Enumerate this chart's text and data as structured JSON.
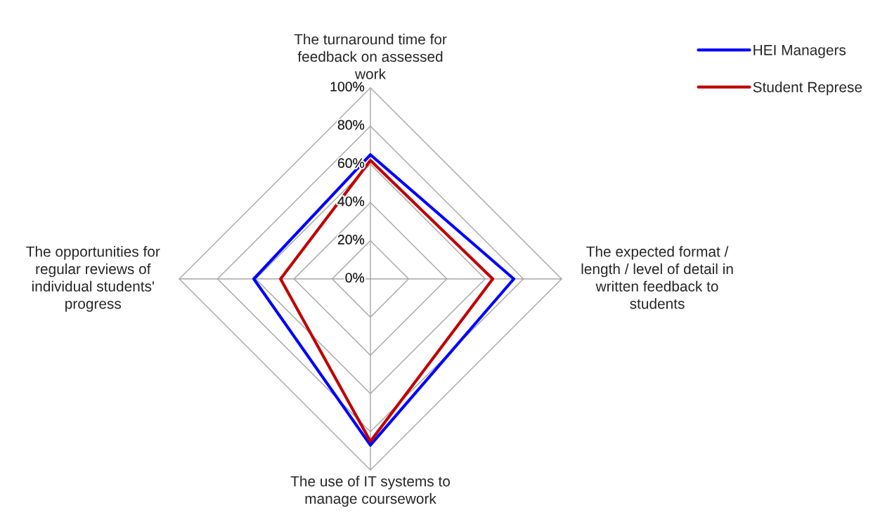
{
  "chart_data": {
    "type": "radar",
    "categories": [
      "The turnaround time for\nfeedback on assessed\nwork",
      "The expected format /\nlength / level of detail in\nwritten feedback to\nstudents",
      "The use of IT systems to\nmanage coursework",
      "The opportunities for\nregular reviews of\nindividual students'\nprogress"
    ],
    "series": [
      {
        "name": "HEI Managers",
        "color": "#0000ff",
        "values": [
          65,
          75,
          87,
          61
        ]
      },
      {
        "name": "Student Represe",
        "color": "#c00000",
        "values": [
          62,
          64,
          85,
          47
        ]
      }
    ],
    "ylim": [
      0,
      100
    ],
    "yticks": [
      {
        "value": 0,
        "label": "0%"
      },
      {
        "value": 20,
        "label": "20%"
      },
      {
        "value": 40,
        "label": "40%"
      },
      {
        "value": 60,
        "label": "60%"
      },
      {
        "value": 80,
        "label": "80%"
      },
      {
        "value": 100,
        "label": "100%"
      }
    ],
    "grid": true,
    "legend": "top right",
    "marker": "none"
  }
}
